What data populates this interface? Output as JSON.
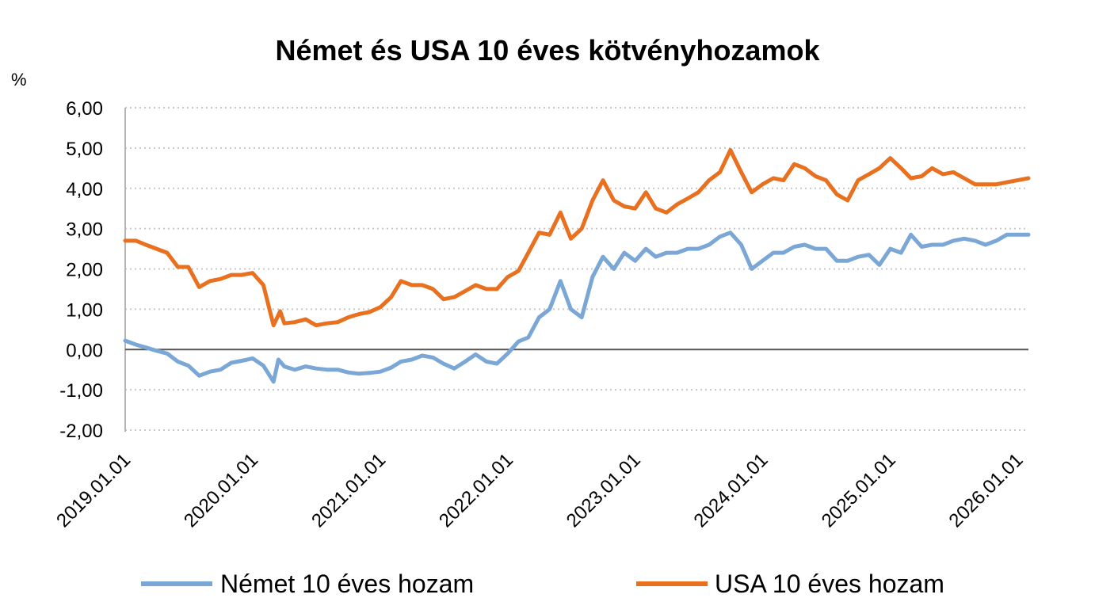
{
  "chart_data": {
    "type": "line",
    "title": "Német és USA 10 éves kötvényhozamok",
    "unit_label": "%",
    "xlabel": "",
    "ylabel": "",
    "ylim": [
      -2,
      6
    ],
    "yticks": [
      -2,
      -1,
      0,
      1,
      2,
      3,
      4,
      5,
      6
    ],
    "ytick_labels": [
      "-2,00",
      "-1,00",
      "0,00",
      "1,00",
      "2,00",
      "3,00",
      "4,00",
      "5,00",
      "6,00"
    ],
    "xlim": [
      "2019-01-01",
      "2026-02-01"
    ],
    "xticks": [
      "2019-01-01",
      "2020-01-01",
      "2021-01-01",
      "2022-01-01",
      "2023-01-01",
      "2024-01-01",
      "2025-01-01",
      "2026-01-01"
    ],
    "xtick_labels": [
      "2019.01.01",
      "2020.01.01",
      "2021.01.01",
      "2022.01.01",
      "2023.01.01",
      "2024.01.01",
      "2025.01.01",
      "2026.01.01"
    ],
    "grid": true,
    "zero_line": true,
    "legend_position": "bottom",
    "series": [
      {
        "name": "Német 10 éves hozam",
        "color": "#7aa7d6",
        "points": [
          [
            "2019-01-01",
            0.22
          ],
          [
            "2019-02-01",
            0.12
          ],
          [
            "2019-03-01",
            0.05
          ],
          [
            "2019-04-01",
            -0.03
          ],
          [
            "2019-05-01",
            -0.1
          ],
          [
            "2019-06-01",
            -0.3
          ],
          [
            "2019-07-01",
            -0.4
          ],
          [
            "2019-08-01",
            -0.65
          ],
          [
            "2019-09-01",
            -0.55
          ],
          [
            "2019-10-01",
            -0.5
          ],
          [
            "2019-11-01",
            -0.33
          ],
          [
            "2019-12-01",
            -0.28
          ],
          [
            "2020-01-01",
            -0.22
          ],
          [
            "2020-02-01",
            -0.4
          ],
          [
            "2020-03-01",
            -0.8
          ],
          [
            "2020-03-15",
            -0.25
          ],
          [
            "2020-04-01",
            -0.42
          ],
          [
            "2020-05-01",
            -0.5
          ],
          [
            "2020-06-01",
            -0.42
          ],
          [
            "2020-07-01",
            -0.47
          ],
          [
            "2020-08-01",
            -0.5
          ],
          [
            "2020-09-01",
            -0.5
          ],
          [
            "2020-10-01",
            -0.57
          ],
          [
            "2020-11-01",
            -0.6
          ],
          [
            "2020-12-01",
            -0.58
          ],
          [
            "2021-01-01",
            -0.55
          ],
          [
            "2021-02-01",
            -0.45
          ],
          [
            "2021-03-01",
            -0.3
          ],
          [
            "2021-04-01",
            -0.25
          ],
          [
            "2021-05-01",
            -0.15
          ],
          [
            "2021-06-01",
            -0.2
          ],
          [
            "2021-07-01",
            -0.35
          ],
          [
            "2021-08-01",
            -0.47
          ],
          [
            "2021-09-01",
            -0.3
          ],
          [
            "2021-10-01",
            -0.12
          ],
          [
            "2021-11-01",
            -0.3
          ],
          [
            "2021-12-01",
            -0.35
          ],
          [
            "2022-01-01",
            -0.1
          ],
          [
            "2022-02-01",
            0.2
          ],
          [
            "2022-03-01",
            0.3
          ],
          [
            "2022-04-01",
            0.8
          ],
          [
            "2022-05-01",
            1.0
          ],
          [
            "2022-06-01",
            1.7
          ],
          [
            "2022-07-01",
            1.0
          ],
          [
            "2022-08-01",
            0.8
          ],
          [
            "2022-09-01",
            1.8
          ],
          [
            "2022-10-01",
            2.3
          ],
          [
            "2022-11-01",
            2.0
          ],
          [
            "2022-12-01",
            2.4
          ],
          [
            "2023-01-01",
            2.2
          ],
          [
            "2023-02-01",
            2.5
          ],
          [
            "2023-03-01",
            2.3
          ],
          [
            "2023-04-01",
            2.4
          ],
          [
            "2023-05-01",
            2.4
          ],
          [
            "2023-06-01",
            2.5
          ],
          [
            "2023-07-01",
            2.5
          ],
          [
            "2023-08-01",
            2.6
          ],
          [
            "2023-09-01",
            2.8
          ],
          [
            "2023-10-01",
            2.9
          ],
          [
            "2023-11-01",
            2.6
          ],
          [
            "2023-12-01",
            2.0
          ],
          [
            "2024-01-01",
            2.2
          ],
          [
            "2024-02-01",
            2.4
          ],
          [
            "2024-03-01",
            2.4
          ],
          [
            "2024-04-01",
            2.55
          ],
          [
            "2024-05-01",
            2.6
          ],
          [
            "2024-06-01",
            2.5
          ],
          [
            "2024-07-01",
            2.5
          ],
          [
            "2024-08-01",
            2.2
          ],
          [
            "2024-09-01",
            2.2
          ],
          [
            "2024-10-01",
            2.3
          ],
          [
            "2024-11-01",
            2.35
          ],
          [
            "2024-12-01",
            2.1
          ],
          [
            "2025-01-01",
            2.5
          ],
          [
            "2025-02-01",
            2.4
          ],
          [
            "2025-03-01",
            2.85
          ],
          [
            "2025-04-01",
            2.55
          ],
          [
            "2025-05-01",
            2.6
          ],
          [
            "2025-06-01",
            2.6
          ],
          [
            "2025-07-01",
            2.7
          ],
          [
            "2025-08-01",
            2.75
          ],
          [
            "2025-09-01",
            2.7
          ],
          [
            "2025-10-01",
            2.6
          ],
          [
            "2025-11-01",
            2.7
          ],
          [
            "2025-12-01",
            2.85
          ],
          [
            "2026-01-01",
            2.85
          ],
          [
            "2026-02-01",
            2.85
          ]
        ]
      },
      {
        "name": "USA 10 éves hozam",
        "color": "#e8701f",
        "points": [
          [
            "2019-01-01",
            2.7
          ],
          [
            "2019-02-01",
            2.7
          ],
          [
            "2019-03-01",
            2.6
          ],
          [
            "2019-04-01",
            2.5
          ],
          [
            "2019-05-01",
            2.4
          ],
          [
            "2019-06-01",
            2.05
          ],
          [
            "2019-07-01",
            2.05
          ],
          [
            "2019-08-01",
            1.55
          ],
          [
            "2019-09-01",
            1.7
          ],
          [
            "2019-10-01",
            1.75
          ],
          [
            "2019-11-01",
            1.85
          ],
          [
            "2019-12-01",
            1.85
          ],
          [
            "2020-01-01",
            1.9
          ],
          [
            "2020-02-01",
            1.6
          ],
          [
            "2020-03-01",
            0.6
          ],
          [
            "2020-03-20",
            0.95
          ],
          [
            "2020-04-01",
            0.65
          ],
          [
            "2020-05-01",
            0.68
          ],
          [
            "2020-06-01",
            0.75
          ],
          [
            "2020-07-01",
            0.6
          ],
          [
            "2020-08-01",
            0.65
          ],
          [
            "2020-09-01",
            0.68
          ],
          [
            "2020-10-01",
            0.8
          ],
          [
            "2020-11-01",
            0.88
          ],
          [
            "2020-12-01",
            0.93
          ],
          [
            "2021-01-01",
            1.05
          ],
          [
            "2021-02-01",
            1.3
          ],
          [
            "2021-03-01",
            1.7
          ],
          [
            "2021-04-01",
            1.6
          ],
          [
            "2021-05-01",
            1.6
          ],
          [
            "2021-06-01",
            1.5
          ],
          [
            "2021-07-01",
            1.25
          ],
          [
            "2021-08-01",
            1.3
          ],
          [
            "2021-09-01",
            1.45
          ],
          [
            "2021-10-01",
            1.6
          ],
          [
            "2021-11-01",
            1.5
          ],
          [
            "2021-12-01",
            1.5
          ],
          [
            "2022-01-01",
            1.8
          ],
          [
            "2022-02-01",
            1.95
          ],
          [
            "2022-03-01",
            2.4
          ],
          [
            "2022-04-01",
            2.9
          ],
          [
            "2022-05-01",
            2.85
          ],
          [
            "2022-06-01",
            3.4
          ],
          [
            "2022-07-01",
            2.75
          ],
          [
            "2022-08-01",
            3.0
          ],
          [
            "2022-09-01",
            3.7
          ],
          [
            "2022-10-01",
            4.2
          ],
          [
            "2022-11-01",
            3.7
          ],
          [
            "2022-12-01",
            3.55
          ],
          [
            "2023-01-01",
            3.5
          ],
          [
            "2023-02-01",
            3.9
          ],
          [
            "2023-03-01",
            3.5
          ],
          [
            "2023-04-01",
            3.4
          ],
          [
            "2023-05-01",
            3.6
          ],
          [
            "2023-06-01",
            3.75
          ],
          [
            "2023-07-01",
            3.9
          ],
          [
            "2023-08-01",
            4.2
          ],
          [
            "2023-09-01",
            4.4
          ],
          [
            "2023-10-01",
            4.95
          ],
          [
            "2023-11-01",
            4.4
          ],
          [
            "2023-12-01",
            3.9
          ],
          [
            "2024-01-01",
            4.1
          ],
          [
            "2024-02-01",
            4.25
          ],
          [
            "2024-03-01",
            4.2
          ],
          [
            "2024-04-01",
            4.6
          ],
          [
            "2024-05-01",
            4.5
          ],
          [
            "2024-06-01",
            4.3
          ],
          [
            "2024-07-01",
            4.2
          ],
          [
            "2024-08-01",
            3.85
          ],
          [
            "2024-09-01",
            3.7
          ],
          [
            "2024-10-01",
            4.2
          ],
          [
            "2024-11-01",
            4.35
          ],
          [
            "2024-12-01",
            4.5
          ],
          [
            "2025-01-01",
            4.75
          ],
          [
            "2025-02-01",
            4.5
          ],
          [
            "2025-03-01",
            4.25
          ],
          [
            "2025-04-01",
            4.3
          ],
          [
            "2025-05-01",
            4.5
          ],
          [
            "2025-06-01",
            4.35
          ],
          [
            "2025-07-01",
            4.4
          ],
          [
            "2025-08-01",
            4.25
          ],
          [
            "2025-09-01",
            4.1
          ],
          [
            "2025-10-01",
            4.1
          ],
          [
            "2025-11-01",
            4.1
          ],
          [
            "2025-12-01",
            4.15
          ],
          [
            "2026-01-01",
            4.2
          ],
          [
            "2026-02-01",
            4.25
          ]
        ]
      }
    ]
  }
}
